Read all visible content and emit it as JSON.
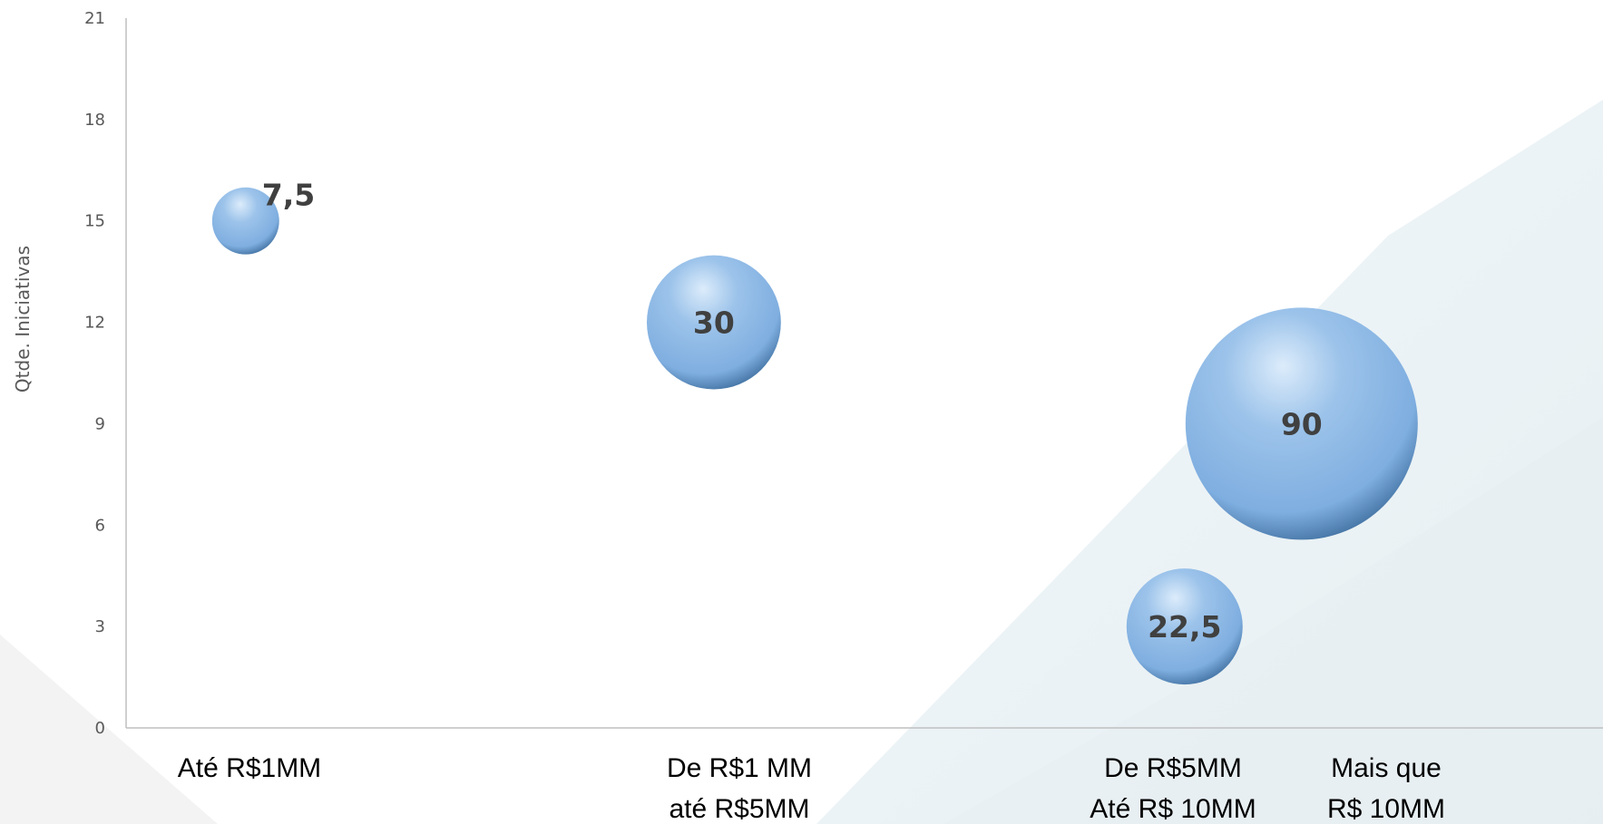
{
  "colors": {
    "bubble": "#7faee0",
    "bubble_highlight": "#dcecfb",
    "bubble_shadow": "#3f6f9f",
    "axis": "#bfbfbf",
    "label": "#404040"
  },
  "chart_data": {
    "type": "bubble",
    "ylabel": "Qtde. Iniciativas",
    "ylim": [
      0,
      21
    ],
    "yticks": [
      0,
      3,
      6,
      9,
      12,
      15,
      18,
      21
    ],
    "grid": false,
    "categories": [
      {
        "lines": [
          "Até R$1MM"
        ]
      },
      {
        "lines": [
          "De R$1 MM",
          "até R$5MM"
        ]
      },
      {
        "lines": [
          "De R$5MM",
          "Até R$ 10MM"
        ]
      },
      {
        "lines": [
          "Mais que",
          "R$ 10MM"
        ]
      }
    ],
    "points": [
      {
        "x": 0.18,
        "y": 15,
        "size": 7.5,
        "label": "7,5"
      },
      {
        "x": 2.06,
        "y": 12,
        "size": 30,
        "label": "30"
      },
      {
        "x": 3.95,
        "y": 3,
        "size": 22.5,
        "label": "22,5"
      },
      {
        "x": 4.42,
        "y": 9,
        "size": 90,
        "label": "90"
      }
    ],
    "xlim": [
      -0.3,
      5.63
    ]
  }
}
